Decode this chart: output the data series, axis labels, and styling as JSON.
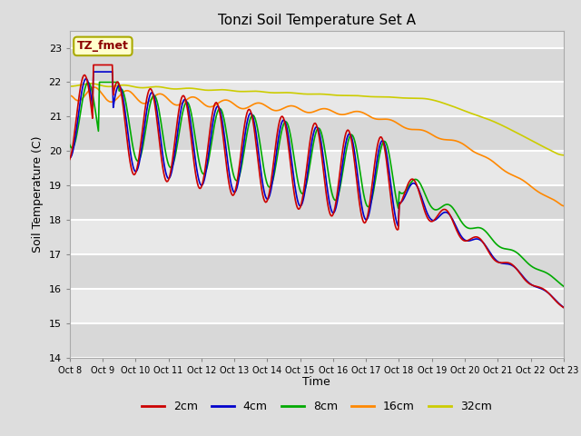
{
  "title": "Tonzi Soil Temperature Set A",
  "xlabel": "Time",
  "ylabel": "Soil Temperature (C)",
  "ylim": [
    14.0,
    23.5
  ],
  "yticks": [
    14.0,
    15.0,
    16.0,
    17.0,
    18.0,
    19.0,
    20.0,
    21.0,
    22.0,
    23.0
  ],
  "xtick_labels": [
    "Oct 8",
    "Oct 9",
    "Oct 10",
    "Oct 11",
    "Oct 12",
    "Oct 13",
    "Oct 14",
    "Oct 15",
    "Oct 16",
    "Oct 17",
    "Oct 18",
    "Oct 19",
    "Oct 20",
    "Oct 21",
    "Oct 22",
    "Oct 23"
  ],
  "colors": {
    "2cm": "#cc0000",
    "4cm": "#0000cc",
    "8cm": "#00aa00",
    "16cm": "#ff8800",
    "32cm": "#cccc00"
  },
  "legend_labels": [
    "2cm",
    "4cm",
    "8cm",
    "16cm",
    "32cm"
  ],
  "annotation_text": "TZ_fmet",
  "annotation_color": "#8b0000",
  "annotation_bg": "#ffffcc",
  "background_color": "#dddddd",
  "plot_bg_color": "#e8e8e8",
  "line_width": 1.2
}
